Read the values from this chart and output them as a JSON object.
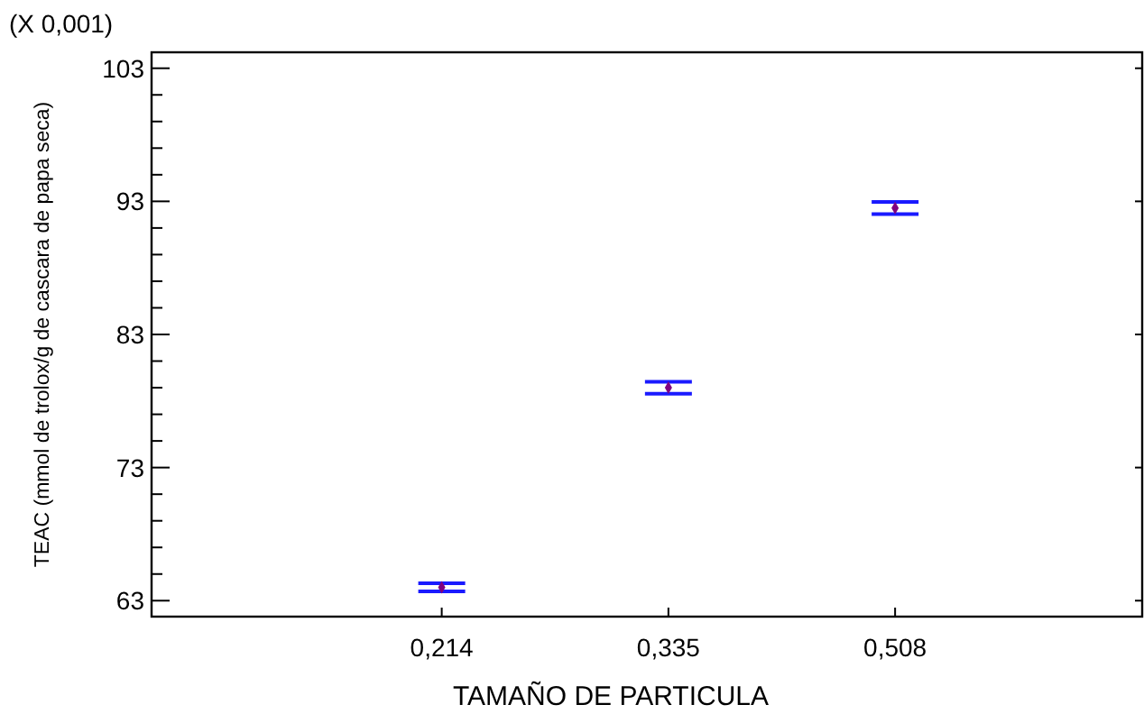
{
  "chart_data": {
    "type": "scatter",
    "xlabel": "TAMAÑO DE PARTICULA",
    "ylabel": "TEAC (mmol de trolox/g de cascara de papa seca)",
    "annotations": [
      "(X 0,001)"
    ],
    "categories": [
      "0,214",
      "0,335",
      "0,508"
    ],
    "series": [
      {
        "color": "#800080",
        "values": [
          64.0,
          79.0,
          92.5
        ],
        "errors": [
          0.3,
          0.45,
          0.45
        ]
      }
    ],
    "ylim": [
      61.8,
      104.2
    ],
    "yticks": [
      63,
      {
        "value": 65,
        "label": null
      },
      {
        "value": 67,
        "label": null
      },
      {
        "value": 69,
        "label": null
      },
      {
        "value": 71,
        "label": null
      },
      73,
      {
        "value": 75,
        "label": null
      },
      {
        "value": 77,
        "label": null
      },
      {
        "value": 79,
        "label": null
      },
      {
        "value": 81,
        "label": null
      },
      83,
      {
        "value": 85,
        "label": null
      },
      {
        "value": 87,
        "label": null
      },
      {
        "value": 89,
        "label": null
      },
      {
        "value": 91,
        "label": null
      },
      93,
      {
        "value": 95,
        "label": null
      },
      {
        "value": 97,
        "label": null
      },
      {
        "value": 99,
        "label": null
      },
      {
        "value": 101,
        "label": null
      },
      103
    ],
    "marker": "diamond",
    "grid": false
  }
}
